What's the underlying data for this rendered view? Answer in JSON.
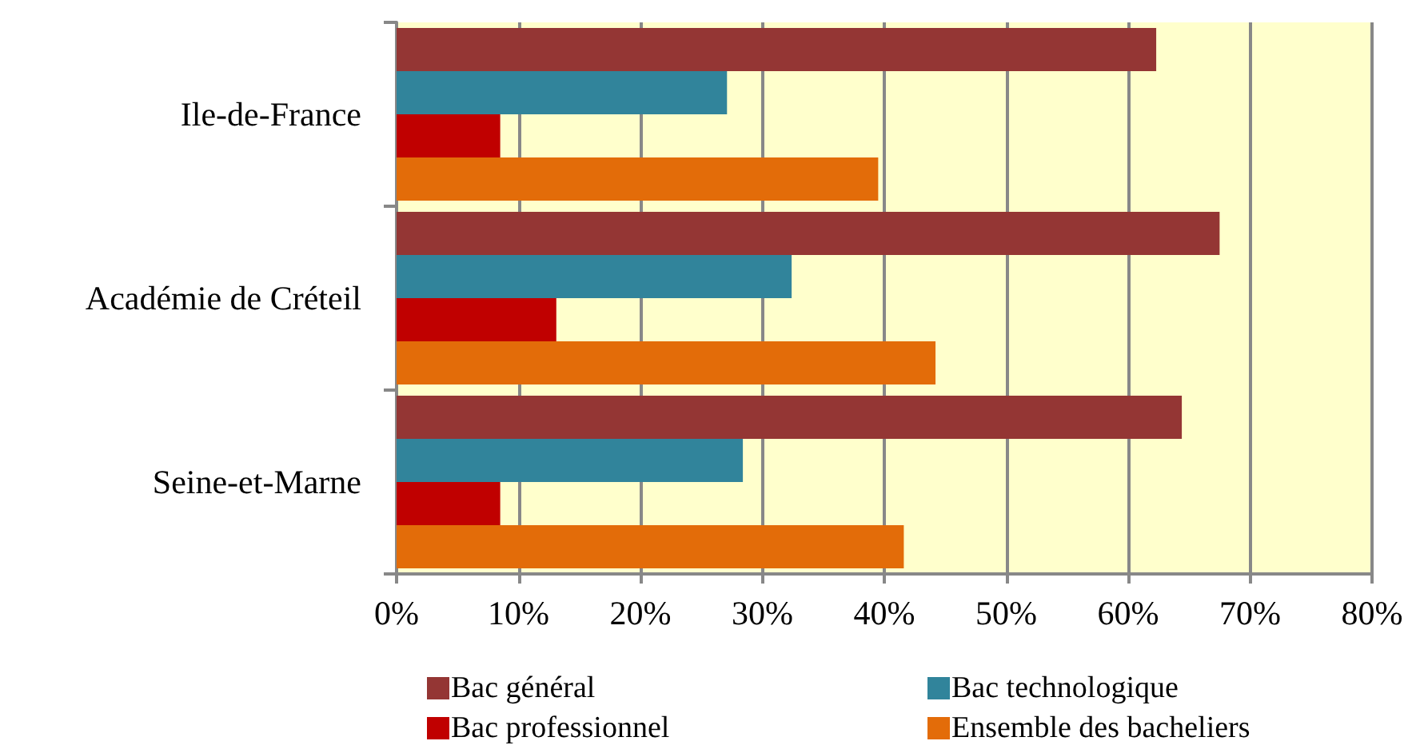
{
  "chart_data": {
    "type": "bar",
    "orientation": "horizontal",
    "categories": [
      "Ile-de-France",
      "Académie de Créteil",
      "Seine-et-Marne"
    ],
    "series": [
      {
        "name": "Bac général",
        "color": "#943634",
        "values": [
          62.3,
          67.5,
          64.4
        ]
      },
      {
        "name": "Bac technologique",
        "color": "#31849b",
        "values": [
          27.1,
          32.4,
          28.4
        ]
      },
      {
        "name": "Bac professionnel",
        "color": "#c00000",
        "values": [
          8.5,
          13.1,
          8.5
        ]
      },
      {
        "name": "Ensemble des bacheliers",
        "color": "#e36c09",
        "values": [
          39.5,
          44.2,
          41.6
        ]
      }
    ],
    "xlim": [
      0,
      80
    ],
    "xticks": [
      {
        "value": 0,
        "label": "0%"
      },
      {
        "value": 10,
        "label": "10%"
      },
      {
        "value": 20,
        "label": "20%"
      },
      {
        "value": 30,
        "label": "30%"
      },
      {
        "value": 40,
        "label": "40%"
      },
      {
        "value": 50,
        "label": "50%"
      },
      {
        "value": 60,
        "label": "60%"
      },
      {
        "value": 70,
        "label": "70%"
      },
      {
        "value": 80,
        "label": "80%"
      }
    ],
    "grid": "x",
    "legend": "bottom"
  }
}
